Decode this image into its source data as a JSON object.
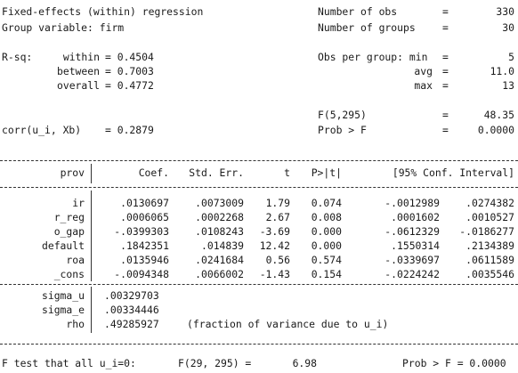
{
  "header": {
    "title": "Fixed-effects (within) regression",
    "group_var": "Group variable: firm",
    "nobs_label": "Number of obs",
    "nobs": "330",
    "ngroups_label": "Number of groups",
    "ngroups": "30",
    "rsq_label": "R-sq:",
    "within_label": "within",
    "within_val": "= 0.4504",
    "between_label": "between",
    "between_val": "= 0.7003",
    "overall_label": "overall",
    "overall_val": "= 0.4772",
    "obs_label": "Obs per group: min",
    "obs_min": "5",
    "avg_label": "avg",
    "obs_avg": "11.0",
    "max_label": "max",
    "obs_max": "13",
    "ftest_label": "F(5,295)",
    "ftest_val": "48.35",
    "prob_label": "Prob > F",
    "prob_val": "0.0000",
    "corr_label": "corr(u_i, Xb)",
    "corr_val": "= 0.2879",
    "eq": "="
  },
  "table": {
    "columns": [
      "prov",
      "Coef.",
      "Std. Err.",
      "t",
      "P>|t|",
      "[95% Conf. Interval]"
    ],
    "rows": [
      {
        "var": "ir",
        "coef": ".0130697",
        "se": ".0073009",
        "t": "1.79",
        "p": "0.074",
        "lo": "-.0012989",
        "hi": ".0274382"
      },
      {
        "var": "r_reg",
        "coef": ".0006065",
        "se": ".0002268",
        "t": "2.67",
        "p": "0.008",
        "lo": ".0001602",
        "hi": ".0010527"
      },
      {
        "var": "o_gap",
        "coef": "-.0399303",
        "se": ".0108243",
        "t": "-3.69",
        "p": "0.000",
        "lo": "-.0612329",
        "hi": "-.0186277"
      },
      {
        "var": "default",
        "coef": ".1842351",
        "se": ".014839",
        "t": "12.42",
        "p": "0.000",
        "lo": ".1550314",
        "hi": ".2134389"
      },
      {
        "var": "roa",
        "coef": ".0135946",
        "se": ".0241684",
        "t": "0.56",
        "p": "0.574",
        "lo": "-.0339697",
        "hi": ".0611589"
      },
      {
        "var": "_cons",
        "coef": "-.0094348",
        "se": ".0066002",
        "t": "-1.43",
        "p": "0.154",
        "lo": "-.0224242",
        "hi": ".0035546"
      }
    ],
    "sigma_u_label": "sigma_u",
    "sigma_u": ".00329703",
    "sigma_e_label": "sigma_e",
    "sigma_e": ".00334446",
    "rho_label": "rho",
    "rho": ".49285927",
    "rho_note": "(fraction of variance due to u_i)"
  },
  "footer": {
    "ftest_label": "F test that all u_i=0:",
    "f_label": "F(29, 295) =",
    "f_val": "6.98",
    "prob_label": "Prob > F = 0.0000"
  }
}
